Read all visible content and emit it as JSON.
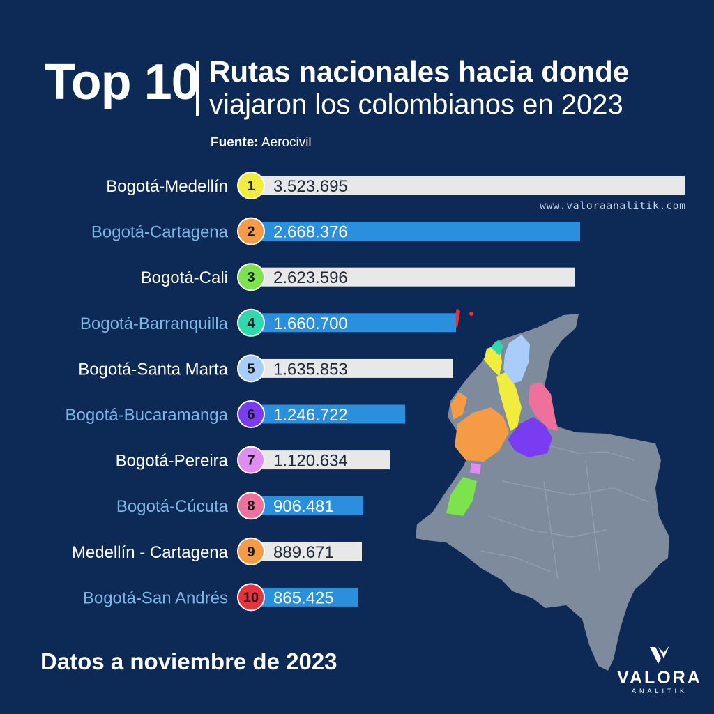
{
  "header": {
    "top_label": "Top 10",
    "title_line1": "Rutas nacionales hacia donde",
    "title_line2": "viajaron los colombianos en 2023",
    "source_label": "Fuente:",
    "source_value": "Aerocivil"
  },
  "watermark": "www.valoraanalitik.com",
  "footer_note": "Datos a noviembre de 2023",
  "logo": {
    "word": "VALORA",
    "sub": "ANALITIK"
  },
  "colors": {
    "background": "#0c2a55",
    "bar_light": "#e8e8e8",
    "bar_blue": "#2a8fdc",
    "label_white": "#ffffff",
    "label_blue": "#7ab6e8",
    "map_base": "#7d8b9c"
  },
  "chart_data": {
    "type": "bar",
    "orientation": "horizontal",
    "title": "Rutas nacionales hacia donde viajaron los colombianos en 2023",
    "categories": [
      "Bogotá-Medellín",
      "Bogotá-Cartagena",
      "Bogotá-Cali",
      "Bogotá-Barranquilla",
      "Bogotá-Santa Marta",
      "Bogotá-Bucaramanga",
      "Bogotá-Pereira",
      "Bogotá-Cúcuta",
      "Medellín - Cartagena",
      "Bogotá-San Andrés"
    ],
    "ranks": [
      "1",
      "2",
      "3",
      "4",
      "5",
      "6",
      "7",
      "8",
      "9",
      "10"
    ],
    "values": [
      3523695,
      2668376,
      2623596,
      1660700,
      1635853,
      1246722,
      1120634,
      906481,
      889671,
      865425
    ],
    "value_labels": [
      "3.523.695",
      "2.668.376",
      "2.623.596",
      "1.660.700",
      "1.635.853",
      "1.246.722",
      "1.120.634",
      "906.481",
      "889.671",
      "865.425"
    ],
    "rank_colors": [
      "#f2ec3c",
      "#f59a45",
      "#7de34c",
      "#2fd9b0",
      "#a8cdfa",
      "#7a3cf0",
      "#e08cf0",
      "#f0709c",
      "#f59a45",
      "#e8323e"
    ],
    "bar_colors": [
      "#e8e8e8",
      "#2a8fdc",
      "#e8e8e8",
      "#2a8fdc",
      "#e8e8e8",
      "#2a8fdc",
      "#e8e8e8",
      "#2a8fdc",
      "#e8e8e8",
      "#2a8fdc"
    ],
    "label_colors": [
      "#ffffff",
      "#7ab6e8",
      "#ffffff",
      "#7ab6e8",
      "#ffffff",
      "#7ab6e8",
      "#ffffff",
      "#7ab6e8",
      "#ffffff",
      "#7ab6e8"
    ],
    "grid": false,
    "legend": "none"
  }
}
